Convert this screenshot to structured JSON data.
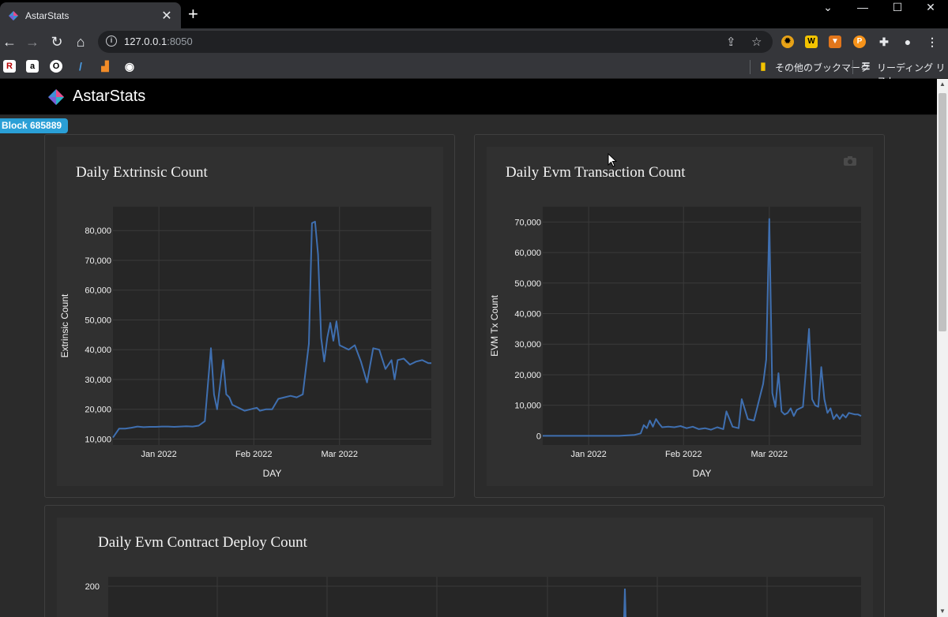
{
  "browser": {
    "tab_title": "AstarStats",
    "url_host": "127.0.0.1",
    "url_port": ":8050",
    "bookmarks_other": "その他のブックマーク",
    "reading_list": "リーディング リスト"
  },
  "app": {
    "brand": "AstarStats",
    "block_badge": "Block 685889"
  },
  "charts": [
    {
      "title": "Daily Extrinsic Count",
      "xlabel": "DAY",
      "ylabel": "Extrinsic Count",
      "yticks": [
        "10,000",
        "20,000",
        "30,000",
        "40,000",
        "50,000",
        "60,000",
        "70,000",
        "80,000"
      ],
      "xticks": [
        "Jan 2022",
        "Feb 2022",
        "Mar 2022"
      ]
    },
    {
      "title": "Daily Evm Transaction Count",
      "xlabel": "DAY",
      "ylabel": "EVM Tx Count",
      "yticks": [
        "0",
        "10,000",
        "20,000",
        "30,000",
        "40,000",
        "50,000",
        "60,000",
        "70,000"
      ],
      "xticks": [
        "Jan 2022",
        "Feb 2022",
        "Mar 2022"
      ]
    },
    {
      "title": "Daily Evm Contract Deploy Count",
      "yticks": [
        "200"
      ]
    }
  ],
  "chart_data": [
    {
      "type": "line",
      "title": "Daily Extrinsic Count",
      "xlabel": "DAY",
      "ylabel": "Extrinsic Count",
      "ylim": [
        8000,
        88000
      ],
      "x_start": "2021-12-17",
      "x_end": "2022-03-31",
      "x_ticks": [
        "2022-01-01",
        "2022-02-01",
        "2022-03-01"
      ],
      "y_ticks": [
        10000,
        20000,
        30000,
        40000,
        50000,
        60000,
        70000,
        80000
      ],
      "grid": true,
      "color": "#3f6fb0",
      "x": [
        "2021-12-17",
        "2021-12-19",
        "2021-12-21",
        "2021-12-23",
        "2021-12-25",
        "2021-12-27",
        "2021-12-29",
        "2021-12-31",
        "2022-01-02",
        "2022-01-04",
        "2022-01-06",
        "2022-01-08",
        "2022-01-10",
        "2022-01-12",
        "2022-01-14",
        "2022-01-16",
        "2022-01-18",
        "2022-01-19",
        "2022-01-20",
        "2022-01-22",
        "2022-01-23",
        "2022-01-24",
        "2022-01-25",
        "2022-01-27",
        "2022-01-29",
        "2022-01-31",
        "2022-02-02",
        "2022-02-03",
        "2022-02-05",
        "2022-02-07",
        "2022-02-09",
        "2022-02-11",
        "2022-02-13",
        "2022-02-15",
        "2022-02-17",
        "2022-02-19",
        "2022-02-20",
        "2022-02-21",
        "2022-02-22",
        "2022-02-23",
        "2022-02-24",
        "2022-02-25",
        "2022-02-26",
        "2022-02-27",
        "2022-02-28",
        "2022-03-01",
        "2022-03-02",
        "2022-03-04",
        "2022-03-06",
        "2022-03-08",
        "2022-03-10",
        "2022-03-12",
        "2022-03-14",
        "2022-03-16",
        "2022-03-18",
        "2022-03-19",
        "2022-03-20",
        "2022-03-22",
        "2022-03-24",
        "2022-03-26",
        "2022-03-28",
        "2022-03-30",
        "2022-03-31"
      ],
      "values": [
        10500,
        13500,
        13500,
        13800,
        14200,
        14000,
        14100,
        14100,
        14200,
        14200,
        14100,
        14200,
        14300,
        14200,
        14500,
        16000,
        40500,
        25000,
        20000,
        36500,
        25000,
        24000,
        21500,
        20500,
        19500,
        20000,
        20500,
        19500,
        20000,
        20000,
        23500,
        24000,
        24500,
        24000,
        25000,
        42000,
        82500,
        83000,
        72000,
        44000,
        36000,
        44000,
        49000,
        43000,
        49500,
        41500,
        41000,
        40000,
        41500,
        36000,
        29000,
        40500,
        40000,
        33500,
        36500,
        30000,
        36500,
        37000,
        35000,
        36000,
        36500,
        35500,
        35500
      ]
    },
    {
      "type": "line",
      "title": "Daily Evm Transaction Count",
      "xlabel": "DAY",
      "ylabel": "EVM Tx Count",
      "ylim": [
        -3000,
        75000
      ],
      "x_start": "2021-12-17",
      "x_end": "2022-03-31",
      "x_ticks": [
        "2022-01-01",
        "2022-02-01",
        "2022-03-01"
      ],
      "y_ticks": [
        0,
        10000,
        20000,
        30000,
        40000,
        50000,
        60000,
        70000
      ],
      "grid": true,
      "color": "#3f6fb0",
      "x": [
        "2021-12-17",
        "2021-12-22",
        "2021-12-27",
        "2022-01-01",
        "2022-01-06",
        "2022-01-11",
        "2022-01-16",
        "2022-01-18",
        "2022-01-19",
        "2022-01-20",
        "2022-01-21",
        "2022-01-22",
        "2022-01-23",
        "2022-01-24",
        "2022-01-25",
        "2022-01-27",
        "2022-01-29",
        "2022-01-31",
        "2022-02-02",
        "2022-02-04",
        "2022-02-06",
        "2022-02-08",
        "2022-02-10",
        "2022-02-12",
        "2022-02-14",
        "2022-02-15",
        "2022-02-17",
        "2022-02-19",
        "2022-02-20",
        "2022-02-22",
        "2022-02-24",
        "2022-02-26",
        "2022-02-27",
        "2022-02-28",
        "2022-03-01",
        "2022-03-02",
        "2022-03-03",
        "2022-03-04",
        "2022-03-05",
        "2022-03-06",
        "2022-03-07",
        "2022-03-08",
        "2022-03-09",
        "2022-03-10",
        "2022-03-12",
        "2022-03-13",
        "2022-03-14",
        "2022-03-15",
        "2022-03-16",
        "2022-03-17",
        "2022-03-18",
        "2022-03-19",
        "2022-03-20",
        "2022-03-21",
        "2022-03-22",
        "2022-03-23",
        "2022-03-24",
        "2022-03-25",
        "2022-03-26",
        "2022-03-27",
        "2022-03-29",
        "2022-03-30",
        "2022-03-31"
      ],
      "values": [
        0,
        0,
        0,
        0,
        0,
        0,
        300,
        800,
        3500,
        2500,
        5000,
        3000,
        5500,
        4000,
        2800,
        3000,
        2800,
        3200,
        2500,
        3000,
        2200,
        2500,
        2000,
        2800,
        2200,
        8000,
        3000,
        2500,
        12000,
        5500,
        5000,
        13000,
        17000,
        25000,
        71000,
        14000,
        9500,
        20500,
        8000,
        7000,
        7500,
        9000,
        6500,
        8500,
        9500,
        22000,
        35000,
        12000,
        10000,
        9500,
        22500,
        12000,
        7500,
        9000,
        5500,
        7000,
        5500,
        7000,
        6000,
        7500,
        7000,
        7000,
        6500
      ]
    },
    {
      "type": "line",
      "title": "Daily Evm Contract Deploy Count",
      "y_ticks": [
        200
      ],
      "grid": true,
      "color": "#3f6fb0"
    }
  ]
}
